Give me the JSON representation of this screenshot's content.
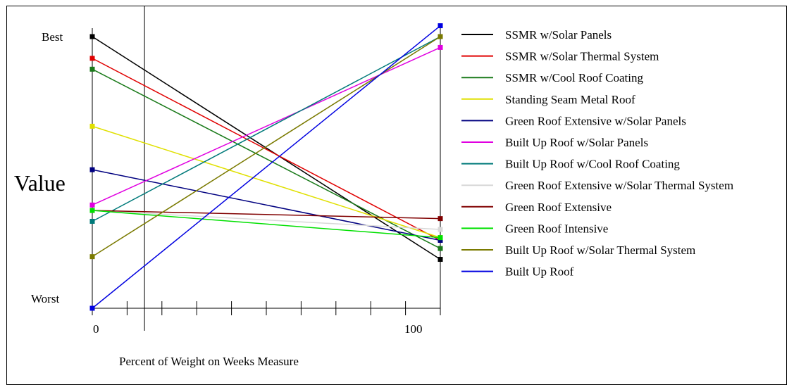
{
  "chart_data": {
    "type": "line",
    "ylabel": "Value",
    "xlabel": "Percent of Weight on Weeks Measure",
    "y_tick_top": "Best",
    "y_tick_bottom": "Worst",
    "x_ticks": [
      "0",
      "100"
    ],
    "xlim": [
      0,
      100
    ],
    "ylim": [
      0,
      100
    ],
    "x_marker": 15,
    "legend_position": "right",
    "series": [
      {
        "name": "SSMR w/Solar Panels",
        "color": "#000000",
        "values": [
          100,
          18
        ]
      },
      {
        "name": "SSMR w/Solar Thermal System",
        "color": "#e00000",
        "values": [
          92,
          25
        ]
      },
      {
        "name": "SSMR w/Cool Roof Coating",
        "color": "#1a7a1a",
        "values": [
          88,
          22
        ]
      },
      {
        "name": "Standing Seam Metal Roof",
        "color": "#e0e000",
        "values": [
          67,
          26
        ]
      },
      {
        "name": "Green Roof Extensive w/Solar Panels",
        "color": "#000080",
        "values": [
          51,
          25
        ]
      },
      {
        "name": "Built Up Roof w/Solar Panels",
        "color": "#e000e0",
        "values": [
          38,
          96
        ]
      },
      {
        "name": "Built Up Roof w/Cool Roof Coating",
        "color": "#007a7a",
        "values": [
          32,
          100
        ]
      },
      {
        "name": "Green Roof Extensive w/Solar Thermal System",
        "color": "#d8d8d8",
        "values": [
          36,
          29
        ]
      },
      {
        "name": "Green Roof Extensive",
        "color": "#800000",
        "values": [
          36,
          33
        ]
      },
      {
        "name": "Green Roof Intensive",
        "color": "#00e000",
        "values": [
          36,
          26
        ]
      },
      {
        "name": "Built Up Roof w/Solar Thermal System",
        "color": "#7a7a00",
        "values": [
          19,
          100
        ]
      },
      {
        "name": "Built Up Roof",
        "color": "#0000e0",
        "values": [
          0,
          104
        ]
      }
    ]
  }
}
